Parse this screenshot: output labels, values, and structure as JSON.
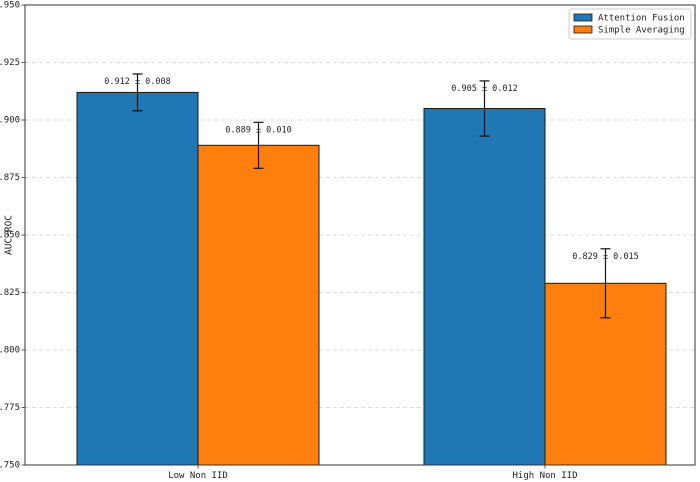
{
  "chart_data": {
    "type": "bar",
    "categories": [
      "Low Non IID",
      "High Non IID"
    ],
    "series": [
      {
        "name": "Attention Fusion",
        "color": "#1f77b4",
        "values": [
          0.912,
          0.905
        ],
        "errors": [
          0.008,
          0.012
        ],
        "labels": [
          "0.912 ± 0.008",
          "0.905 ± 0.012"
        ]
      },
      {
        "name": "Simple Averaging",
        "color": "#ff7f0e",
        "values": [
          0.889,
          0.829
        ],
        "errors": [
          0.01,
          0.015
        ],
        "labels": [
          "0.889 ± 0.010",
          "0.829 ± 0.015"
        ]
      }
    ],
    "ylabel": "AUC-ROC",
    "xlabel": "",
    "title": "",
    "ylim": [
      0.75,
      0.95
    ],
    "yticks": [
      "0.750",
      "0.775",
      "0.800",
      "0.825",
      "0.850",
      "0.875",
      "0.900",
      "0.925",
      "0.950"
    ],
    "grid": "horizontal dashed",
    "legend_position": "top-right"
  }
}
